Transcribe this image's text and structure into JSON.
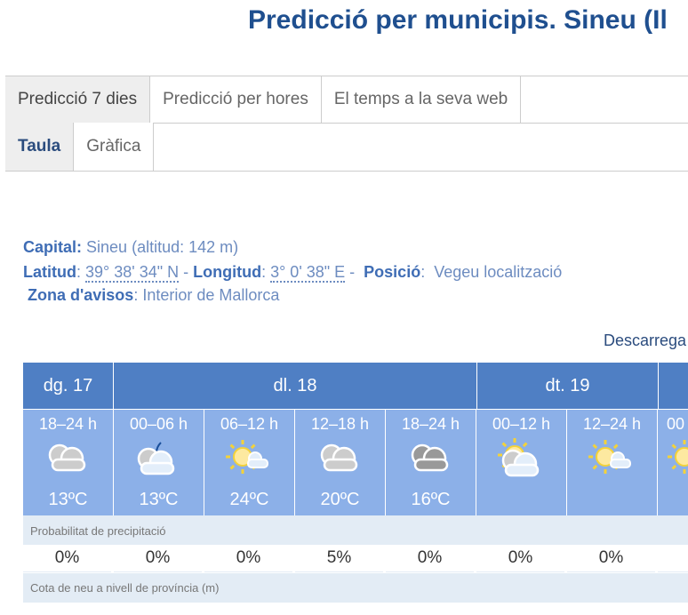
{
  "title": "Predicció per municipis. Sineu (Il",
  "tabs": [
    "Predicció 7 dies",
    "Predicció per hores",
    "El temps a la seva web"
  ],
  "subtabs": [
    "Taula",
    "Gràfica"
  ],
  "info": {
    "capital_label": "Capital:",
    "capital_value": "Sineu (altitud: 142 m)",
    "lat_label": "Latitud",
    "lat_value": "39° 38' 34\" N",
    "lon_label": "Longitud",
    "lon_value": "3° 0' 38\" E",
    "pos_label": "Posició",
    "pos_link": "Vegeu localització",
    "zone_label": "Zona d'avisos",
    "zone_value": "Interior de Mallorca"
  },
  "download": "Descarrega",
  "days": [
    "dg. 17",
    "dl. 18",
    "dt. 19",
    ""
  ],
  "periods": [
    {
      "time": "18–24 h",
      "icon": "cloudy-icon",
      "temp": "13ºC",
      "precip": "0%"
    },
    {
      "time": "00–06 h",
      "icon": "night-cloudy-icon",
      "temp": "13ºC",
      "precip": "0%"
    },
    {
      "time": "06–12 h",
      "icon": "sun-cloud-icon",
      "temp": "24ºC",
      "precip": "0%"
    },
    {
      "time": "12–18 h",
      "icon": "cloudy-icon",
      "temp": "20ºC",
      "precip": "5%"
    },
    {
      "time": "18–24 h",
      "icon": "overcast-icon",
      "temp": "16ºC",
      "precip": "0%"
    },
    {
      "time": "00–12 h",
      "icon": "sun-cloudy-icon",
      "temp": "",
      "precip": "0%"
    },
    {
      "time": "12–24 h",
      "icon": "sun-cloud-icon",
      "temp": "",
      "precip": "0%"
    },
    {
      "time": "00",
      "icon": "sun-icon",
      "temp": "",
      "precip": ""
    }
  ],
  "precip_label": "Probabilitat de precipitació",
  "snow_label": "Cota de neu a nivell de província (m)",
  "colors": {
    "header": "#4f7fc4",
    "period": "#8cb0e8",
    "label_bg": "#e3ecf5",
    "title": "#1f4f8f"
  }
}
